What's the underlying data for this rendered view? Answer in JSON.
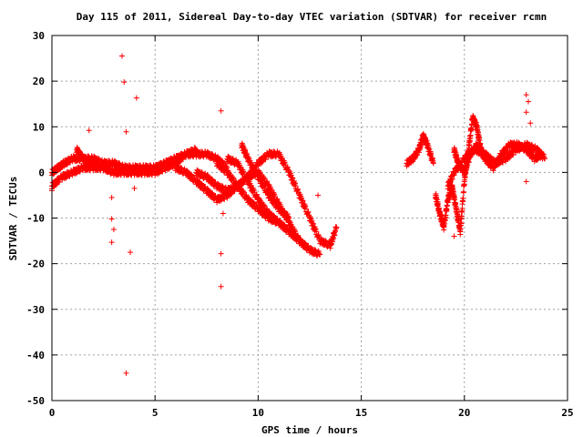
{
  "chart_data": {
    "type": "scatter",
    "title": "Day 115 of 2011, Sidereal Day-to-day VTEC variation (SDTVAR) for receiver rcmn",
    "xlabel": "GPS time / hours",
    "ylabel": "SDTVAR / TECUs",
    "xlim": [
      0,
      25
    ],
    "ylim": [
      -50,
      30
    ],
    "x_ticks": [
      "0",
      "5",
      "10",
      "15",
      "20",
      "25"
    ],
    "y_ticks": [
      "30",
      "20",
      "10",
      "0",
      "-10",
      "-20",
      "-30",
      "-40",
      "-50"
    ],
    "grid": true,
    "marker": "+",
    "color": "#ff0000",
    "tracks": [
      {
        "x": [
          0.0,
          0.3,
          0.6,
          1.0,
          1.5,
          2.0,
          2.5,
          3.0,
          3.5,
          4.0,
          4.5,
          5.0,
          5.5,
          6.0,
          6.5,
          7.0,
          7.5,
          8.0,
          8.5
        ],
        "y": [
          0,
          1,
          2,
          3,
          3,
          3,
          2,
          2,
          1,
          1,
          1,
          1,
          2,
          3,
          4,
          4,
          4,
          3,
          1
        ]
      },
      {
        "x": [
          0.0,
          0.5,
          1.0,
          1.5,
          2.0,
          2.5,
          3.0,
          3.5,
          4.0,
          4.5,
          5.0,
          5.5,
          6.0,
          6.5,
          7.0
        ],
        "y": [
          -3,
          -1,
          0,
          1,
          1,
          1,
          0,
          0,
          0,
          0,
          0,
          1,
          2,
          4,
          5
        ]
      },
      {
        "x": [
          1.2,
          1.5,
          2.0,
          2.5,
          3.0,
          3.5,
          4.0,
          4.5,
          5.0,
          5.5,
          6.0,
          6.5
        ],
        "y": [
          5,
          3,
          2,
          1,
          0,
          0,
          0,
          0,
          1,
          2,
          3,
          4
        ]
      },
      {
        "x": [
          6.0,
          6.5,
          7.0,
          7.5,
          8.0,
          8.5,
          9.0,
          9.5,
          10.0,
          10.5,
          11.0,
          11.5,
          12.0,
          12.5,
          13.0
        ],
        "y": [
          1,
          0,
          -2,
          -4,
          -6,
          -5,
          -3,
          -1,
          0,
          -3,
          -7,
          -11,
          -15,
          -17,
          -18
        ]
      },
      {
        "x": [
          7.0,
          7.5,
          8.0,
          8.5,
          9.0,
          9.5,
          10.0,
          10.5,
          11.0,
          11.5,
          12.0,
          12.5,
          13.0,
          13.5,
          13.8
        ],
        "y": [
          0,
          -1,
          -3,
          -4,
          -3,
          -1,
          2,
          4,
          4,
          0,
          -5,
          -10,
          -15,
          -16,
          -12
        ]
      },
      {
        "x": [
          8.0,
          8.5,
          9.0,
          9.5,
          10.0,
          10.5,
          11.0,
          11.5,
          12.0,
          12.5
        ],
        "y": [
          2,
          0,
          -3,
          -6,
          -8,
          -10,
          -11,
          -13,
          -15,
          -17
        ]
      },
      {
        "x": [
          8.5,
          9.0,
          9.5,
          10.0,
          10.5,
          11.0,
          11.5,
          12.0
        ],
        "y": [
          3,
          2,
          -2,
          -6,
          -9,
          -11,
          -13,
          -15
        ]
      },
      {
        "x": [
          9.2,
          9.5,
          10.0,
          10.5,
          11.0,
          11.5
        ],
        "y": [
          6,
          3,
          -1,
          -5,
          -8,
          -10
        ]
      },
      {
        "x": [
          17.2,
          17.5,
          17.8,
          18.0,
          18.2,
          18.5
        ],
        "y": [
          2,
          3,
          5,
          8,
          6,
          2
        ]
      },
      {
        "x": [
          18.6,
          18.8,
          19.0,
          19.2,
          19.4,
          19.6,
          19.8,
          20.0,
          20.2,
          20.4,
          20.6,
          20.8,
          21.0
        ],
        "y": [
          -5,
          -9,
          -12,
          -6,
          -3,
          -8,
          -13,
          -2,
          5,
          12,
          10,
          5,
          3
        ]
      },
      {
        "x": [
          19.5,
          19.7,
          20.0,
          20.3,
          20.6,
          21.0,
          21.4,
          21.8,
          22.2,
          22.6,
          23.0,
          23.4,
          23.8
        ],
        "y": [
          5,
          2,
          0,
          4,
          6,
          3,
          1,
          4,
          6,
          6,
          5,
          3,
          4
        ]
      },
      {
        "x": [
          19.2,
          19.5,
          20.0,
          20.5,
          21.0,
          21.5,
          22.0,
          22.5,
          23.0,
          23.5,
          23.9
        ],
        "y": [
          -3,
          0,
          3,
          5,
          4,
          2,
          3,
          5,
          6,
          5,
          3
        ]
      }
    ],
    "outliers": [
      {
        "x": 3.4,
        "y": 25.5
      },
      {
        "x": 3.5,
        "y": 19.8
      },
      {
        "x": 4.1,
        "y": 16.3
      },
      {
        "x": 3.6,
        "y": 8.9
      },
      {
        "x": 1.8,
        "y": 9.2
      },
      {
        "x": 2.9,
        "y": -10.2
      },
      {
        "x": 3.0,
        "y": -12.5
      },
      {
        "x": 2.9,
        "y": -15.3
      },
      {
        "x": 3.8,
        "y": -17.5
      },
      {
        "x": 3.6,
        "y": -44.0
      },
      {
        "x": 8.2,
        "y": 13.5
      },
      {
        "x": 8.2,
        "y": -17.8
      },
      {
        "x": 8.2,
        "y": -25.0
      },
      {
        "x": 12.9,
        "y": -5.0
      },
      {
        "x": 2.9,
        "y": -5.5
      },
      {
        "x": 4.0,
        "y": -3.5
      },
      {
        "x": 0.0,
        "y": -4.0
      },
      {
        "x": 23.0,
        "y": 17.0
      },
      {
        "x": 23.1,
        "y": 15.5
      },
      {
        "x": 23.0,
        "y": 13.2
      },
      {
        "x": 23.2,
        "y": 10.8
      },
      {
        "x": 23.0,
        "y": -2.0
      },
      {
        "x": 19.5,
        "y": -14.0
      },
      {
        "x": 8.3,
        "y": -9.0
      }
    ]
  }
}
